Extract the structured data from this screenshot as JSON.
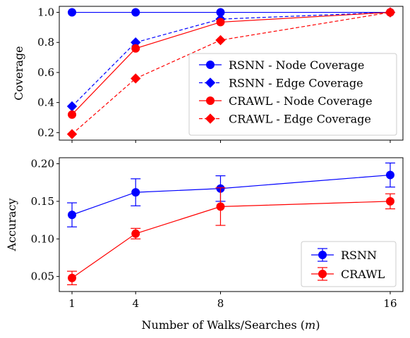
{
  "chart_data": [
    {
      "type": "line",
      "ylabel": "Coverage",
      "xlabel": "",
      "x": [
        1,
        4,
        8,
        16
      ],
      "xlim": [
        0.4,
        16.6
      ],
      "ylim": [
        0.15,
        1.04
      ],
      "yticks": [
        0.2,
        0.4,
        0.6,
        0.8,
        1.0
      ],
      "yticklabels": [
        "0.2",
        "0.4",
        "0.6",
        "0.8",
        "1.0"
      ],
      "legend_position": "lower-right",
      "series": [
        {
          "name": "RSNN - Node Coverage",
          "values": [
            1.0,
            1.0,
            1.0,
            1.0
          ],
          "color": "#0000ff",
          "linestyle": "solid",
          "marker": "circle"
        },
        {
          "name": "RSNN - Edge Coverage",
          "values": [
            0.375,
            0.8,
            0.955,
            1.0
          ],
          "color": "#0000ff",
          "linestyle": "dashed",
          "marker": "diamond"
        },
        {
          "name": "CRAWL - Node Coverage",
          "values": [
            0.32,
            0.76,
            0.935,
            1.0
          ],
          "color": "#ff0000",
          "linestyle": "solid",
          "marker": "circle"
        },
        {
          "name": "CRAWL - Edge Coverage",
          "values": [
            0.19,
            0.56,
            0.815,
            1.0
          ],
          "color": "#ff0000",
          "linestyle": "dashed",
          "marker": "diamond"
        }
      ]
    },
    {
      "type": "line",
      "ylabel": "Accuracy",
      "xlabel": "Number of Walks/Searches (m)",
      "x": [
        1,
        4,
        8,
        16
      ],
      "xticklabels": [
        "1",
        "4",
        "8",
        "16"
      ],
      "xlim": [
        0.4,
        16.6
      ],
      "ylim": [
        0.03,
        0.208
      ],
      "yticks": [
        0.05,
        0.1,
        0.15,
        0.2
      ],
      "yticklabels": [
        "0.05",
        "0.10",
        "0.15",
        "0.20"
      ],
      "legend_position": "lower-right",
      "series": [
        {
          "name": "RSNN",
          "values": [
            0.132,
            0.162,
            0.167,
            0.185
          ],
          "errors": [
            0.016,
            0.018,
            0.017,
            0.016
          ],
          "color": "#0000ff",
          "linestyle": "solid",
          "marker": "circle"
        },
        {
          "name": "CRAWL",
          "values": [
            0.048,
            0.107,
            0.143,
            0.15
          ],
          "errors": [
            0.009,
            0.007,
            0.025,
            0.01
          ],
          "color": "#ff0000",
          "linestyle": "solid",
          "marker": "circle"
        }
      ]
    }
  ]
}
